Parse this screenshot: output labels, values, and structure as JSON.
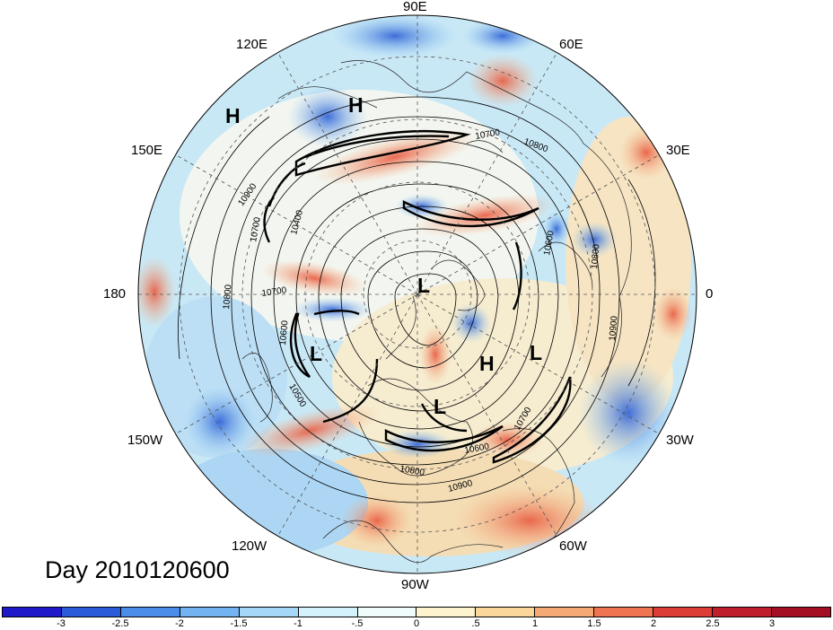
{
  "title": "Day 2010120600",
  "longitude_labels": [
    "90E",
    "60E",
    "30E",
    "0",
    "30W",
    "60W",
    "90W",
    "120W",
    "150W",
    "180",
    "150E",
    "120E"
  ],
  "pressure_centers": [
    "H",
    "H",
    "L",
    "L",
    "H",
    "L",
    "L"
  ],
  "contour_labels": [
    "10700",
    "10800",
    "10900",
    "10400",
    "10700",
    "10800",
    "10700",
    "10600",
    "10500",
    "10600",
    "10800",
    "10900",
    "10800",
    "10900",
    "10600",
    "10700"
  ],
  "colorbar": {
    "ticks": [
      "-3",
      "-2.5",
      "-2",
      "-1.5",
      "-1",
      "-.5",
      "0",
      ".5",
      "1",
      "1.5",
      "2",
      "2.5",
      "3"
    ],
    "colors": [
      "#1f19c9",
      "#2c5bd9",
      "#4a8eea",
      "#73b3f2",
      "#a5d8f8",
      "#d4f2fb",
      "#f0fbfb",
      "#fdf4cf",
      "#fbd79b",
      "#f5aa76",
      "#ee7452",
      "#dc3d36",
      "#bf1e2c",
      "#a50f23"
    ]
  },
  "chart_data": {
    "type": "polar-stereographic map",
    "center": "North Pole",
    "contour_interval_m": 100,
    "contour_variable": "geopotential height",
    "shading_range": [
      -3,
      3
    ],
    "shading_interval": 0.5,
    "labeled_contours": [
      10400,
      10500,
      10600,
      10700,
      10800,
      10900
    ],
    "title": "Day 2010120600"
  }
}
